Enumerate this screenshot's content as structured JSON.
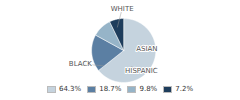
{
  "chart_data": {
    "type": "pie",
    "categories": [
      "WHITE",
      "BLACK",
      "HISPANIC",
      "ASIAN"
    ],
    "values": [
      64.3,
      18.7,
      9.8,
      7.2
    ],
    "value_labels": [
      "64.3%",
      "18.7%",
      "9.8%",
      "7.2%"
    ],
    "colors": [
      "#c5d3de",
      "#5b7fa3",
      "#96b4c8",
      "#1e3d5c"
    ],
    "legend": "bottom"
  }
}
